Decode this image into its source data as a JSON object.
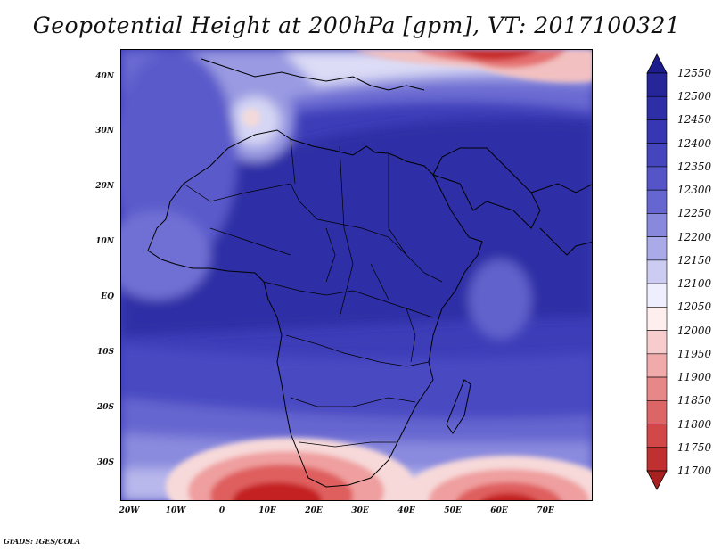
{
  "title": "Geopotential Height at 200hPa [gpm], VT: 2017100321",
  "credit": "GrADS: IGES/COLA",
  "axes": {
    "lat_labels": [
      "40N",
      "30N",
      "20N",
      "10N",
      "EQ",
      "10S",
      "20S",
      "30S"
    ],
    "lon_labels": [
      "20W",
      "10W",
      "0",
      "10E",
      "20E",
      "30E",
      "40E",
      "50E",
      "60E",
      "70E"
    ]
  },
  "colorbar": {
    "levels": [
      "12550",
      "12500",
      "12450",
      "12400",
      "12350",
      "12300",
      "12250",
      "12200",
      "12150",
      "12100",
      "12050",
      "12000",
      "11950",
      "11900",
      "11850",
      "11800",
      "11750",
      "11700"
    ],
    "colors": [
      "#1c1c8c",
      "#262699",
      "#2e2ea6",
      "#3737b3",
      "#4545be",
      "#5555c8",
      "#6666d0",
      "#8888dd",
      "#aaaae8",
      "#ccccf2",
      "#eeeeff",
      "#ffeeee",
      "#f8cccc",
      "#f0aaaa",
      "#e68888",
      "#dc6666",
      "#d24848",
      "#c03030",
      "#a82020"
    ]
  },
  "chart_data": {
    "type": "heatmap",
    "title": "Geopotential Height at 200hPa [gpm], VT: 2017100321",
    "variable_units": "gpm",
    "lon_range": [
      -22,
      80
    ],
    "lat_range": [
      -37,
      45
    ],
    "x_ticks": [
      "20W",
      "10W",
      "0",
      "10E",
      "20E",
      "30E",
      "40E",
      "50E",
      "60E",
      "70E"
    ],
    "y_ticks": [
      "40N",
      "30N",
      "20N",
      "10N",
      "EQ",
      "10S",
      "20S",
      "30S"
    ],
    "contour_levels": [
      11700,
      11750,
      11800,
      11850,
      11900,
      11950,
      12000,
      12050,
      12100,
      12150,
      12200,
      12250,
      12300,
      12350,
      12400,
      12450,
      12500,
      12550
    ]
  }
}
